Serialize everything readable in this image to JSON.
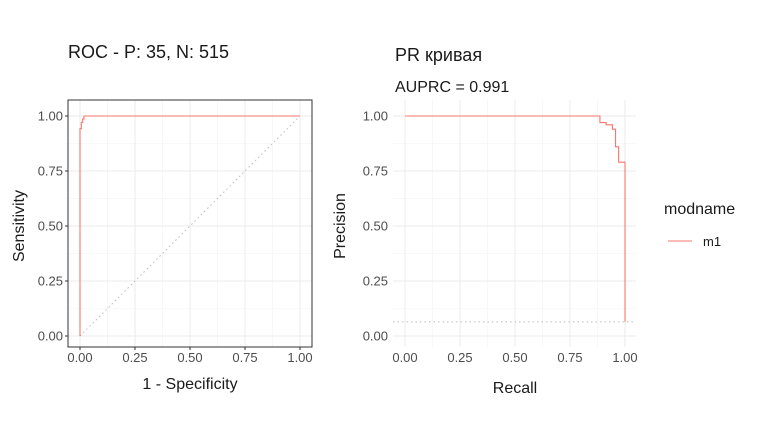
{
  "chart_data": [
    {
      "type": "line",
      "title": "ROC - P: 35, N: 515",
      "xlabel": "1 - Specificity",
      "ylabel": "Sensitivity",
      "xlim": [
        0,
        1
      ],
      "ylim": [
        0,
        1
      ],
      "x_ticks": [
        "0.00",
        "0.25",
        "0.50",
        "0.75",
        "1.00"
      ],
      "y_ticks": [
        "0.00",
        "0.25",
        "0.50",
        "0.75",
        "1.00"
      ],
      "grid": true,
      "panel_border": true,
      "series": [
        {
          "name": "m1",
          "color": "#F8766D",
          "x": [
            0,
            0,
            0.006,
            0.006,
            0.012,
            0.012,
            0.018,
            0.018,
            1
          ],
          "y": [
            0,
            0.943,
            0.943,
            0.971,
            0.971,
            0.986,
            0.986,
            1,
            1
          ]
        }
      ],
      "reference_line": {
        "x": [
          0,
          1
        ],
        "y": [
          0,
          1
        ],
        "style": "dotted",
        "color": "#bdbdbd"
      }
    },
    {
      "type": "line",
      "title": "PR кривая",
      "subtitle": "AUPRC = 0.991",
      "xlabel": "Recall",
      "ylabel": "Precision",
      "xlim": [
        0,
        1
      ],
      "ylim": [
        0,
        1
      ],
      "x_ticks": [
        "0.00",
        "0.25",
        "0.50",
        "0.75",
        "1.00"
      ],
      "y_ticks": [
        "0.00",
        "0.25",
        "0.50",
        "0.75",
        "1.00"
      ],
      "grid": true,
      "panel_border": false,
      "series": [
        {
          "name": "m1",
          "color": "#F8766D",
          "x": [
            0,
            0.886,
            0.886,
            0.914,
            0.914,
            0.943,
            0.943,
            0.957,
            0.957,
            0.971,
            0.971,
            0.986,
            0.986,
            1,
            1
          ],
          "y": [
            1,
            1,
            0.97,
            0.97,
            0.96,
            0.96,
            0.94,
            0.94,
            0.86,
            0.86,
            0.79,
            0.79,
            0.79,
            0.79,
            0.064
          ]
        }
      ],
      "reference_line": {
        "y": 0.064,
        "style": "dotted",
        "color": "#bdbdbd"
      }
    }
  ],
  "legend": {
    "title": "modname",
    "items": [
      {
        "label": "m1",
        "color": "#F8766D"
      }
    ],
    "placement": "right"
  }
}
